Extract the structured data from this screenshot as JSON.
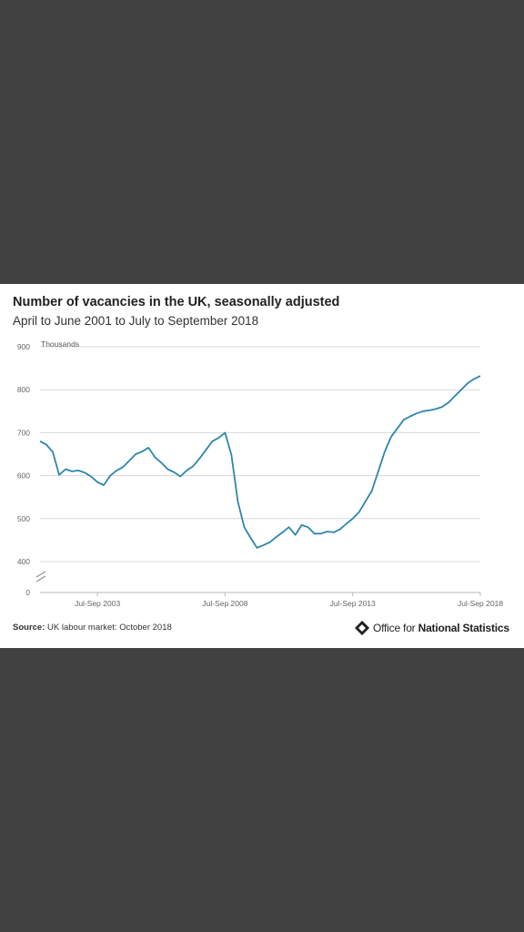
{
  "title": "Number of vacancies in the UK, seasonally adjusted",
  "subtitle": "April to June 2001 to July to September 2018",
  "source": {
    "label": "Source:",
    "text": "UK labour market: October 2018"
  },
  "logo": {
    "prefix": "Office for ",
    "bold": "National Statistics",
    "icon": "ons-logo-icon"
  },
  "colors": {
    "line": "#2e86ab",
    "background": "#414141",
    "card": "#ffffff",
    "grid": "#d9d9d9"
  },
  "chart_data": {
    "type": "line",
    "ylabel": "Thousands",
    "y_ticks": [
      "900",
      "800",
      "700",
      "600",
      "500",
      "400",
      "0"
    ],
    "ylim": [
      400,
      900
    ],
    "axis_break": true,
    "x_tick_labels": [
      "Jul-Sep 2003",
      "Jul-Sep 2008",
      "Jul-Sep 2013",
      "Jul-Sep 2018"
    ],
    "x_tick_index": [
      9,
      29,
      49,
      69
    ],
    "grid": true,
    "x_first": "Apr-Jun 2001",
    "x_last": "Jul-Sep 2018",
    "series": [
      {
        "values": [
          680,
          672,
          655,
          602,
          615,
          610,
          612,
          607,
          598,
          585,
          578,
          600,
          612,
          620,
          635,
          650,
          656,
          665,
          643,
          630,
          615,
          608,
          598,
          612,
          622,
          640,
          660,
          680,
          688,
          700,
          648,
          540,
          480,
          455,
          432,
          438,
          445,
          457,
          468,
          480,
          462,
          485,
          480,
          465,
          465,
          470,
          468,
          475,
          488,
          500,
          515,
          540,
          565,
          610,
          655,
          690,
          710,
          730,
          738,
          745,
          750,
          752,
          755,
          760,
          770,
          785,
          800,
          815,
          825,
          832
        ]
      }
    ]
  }
}
